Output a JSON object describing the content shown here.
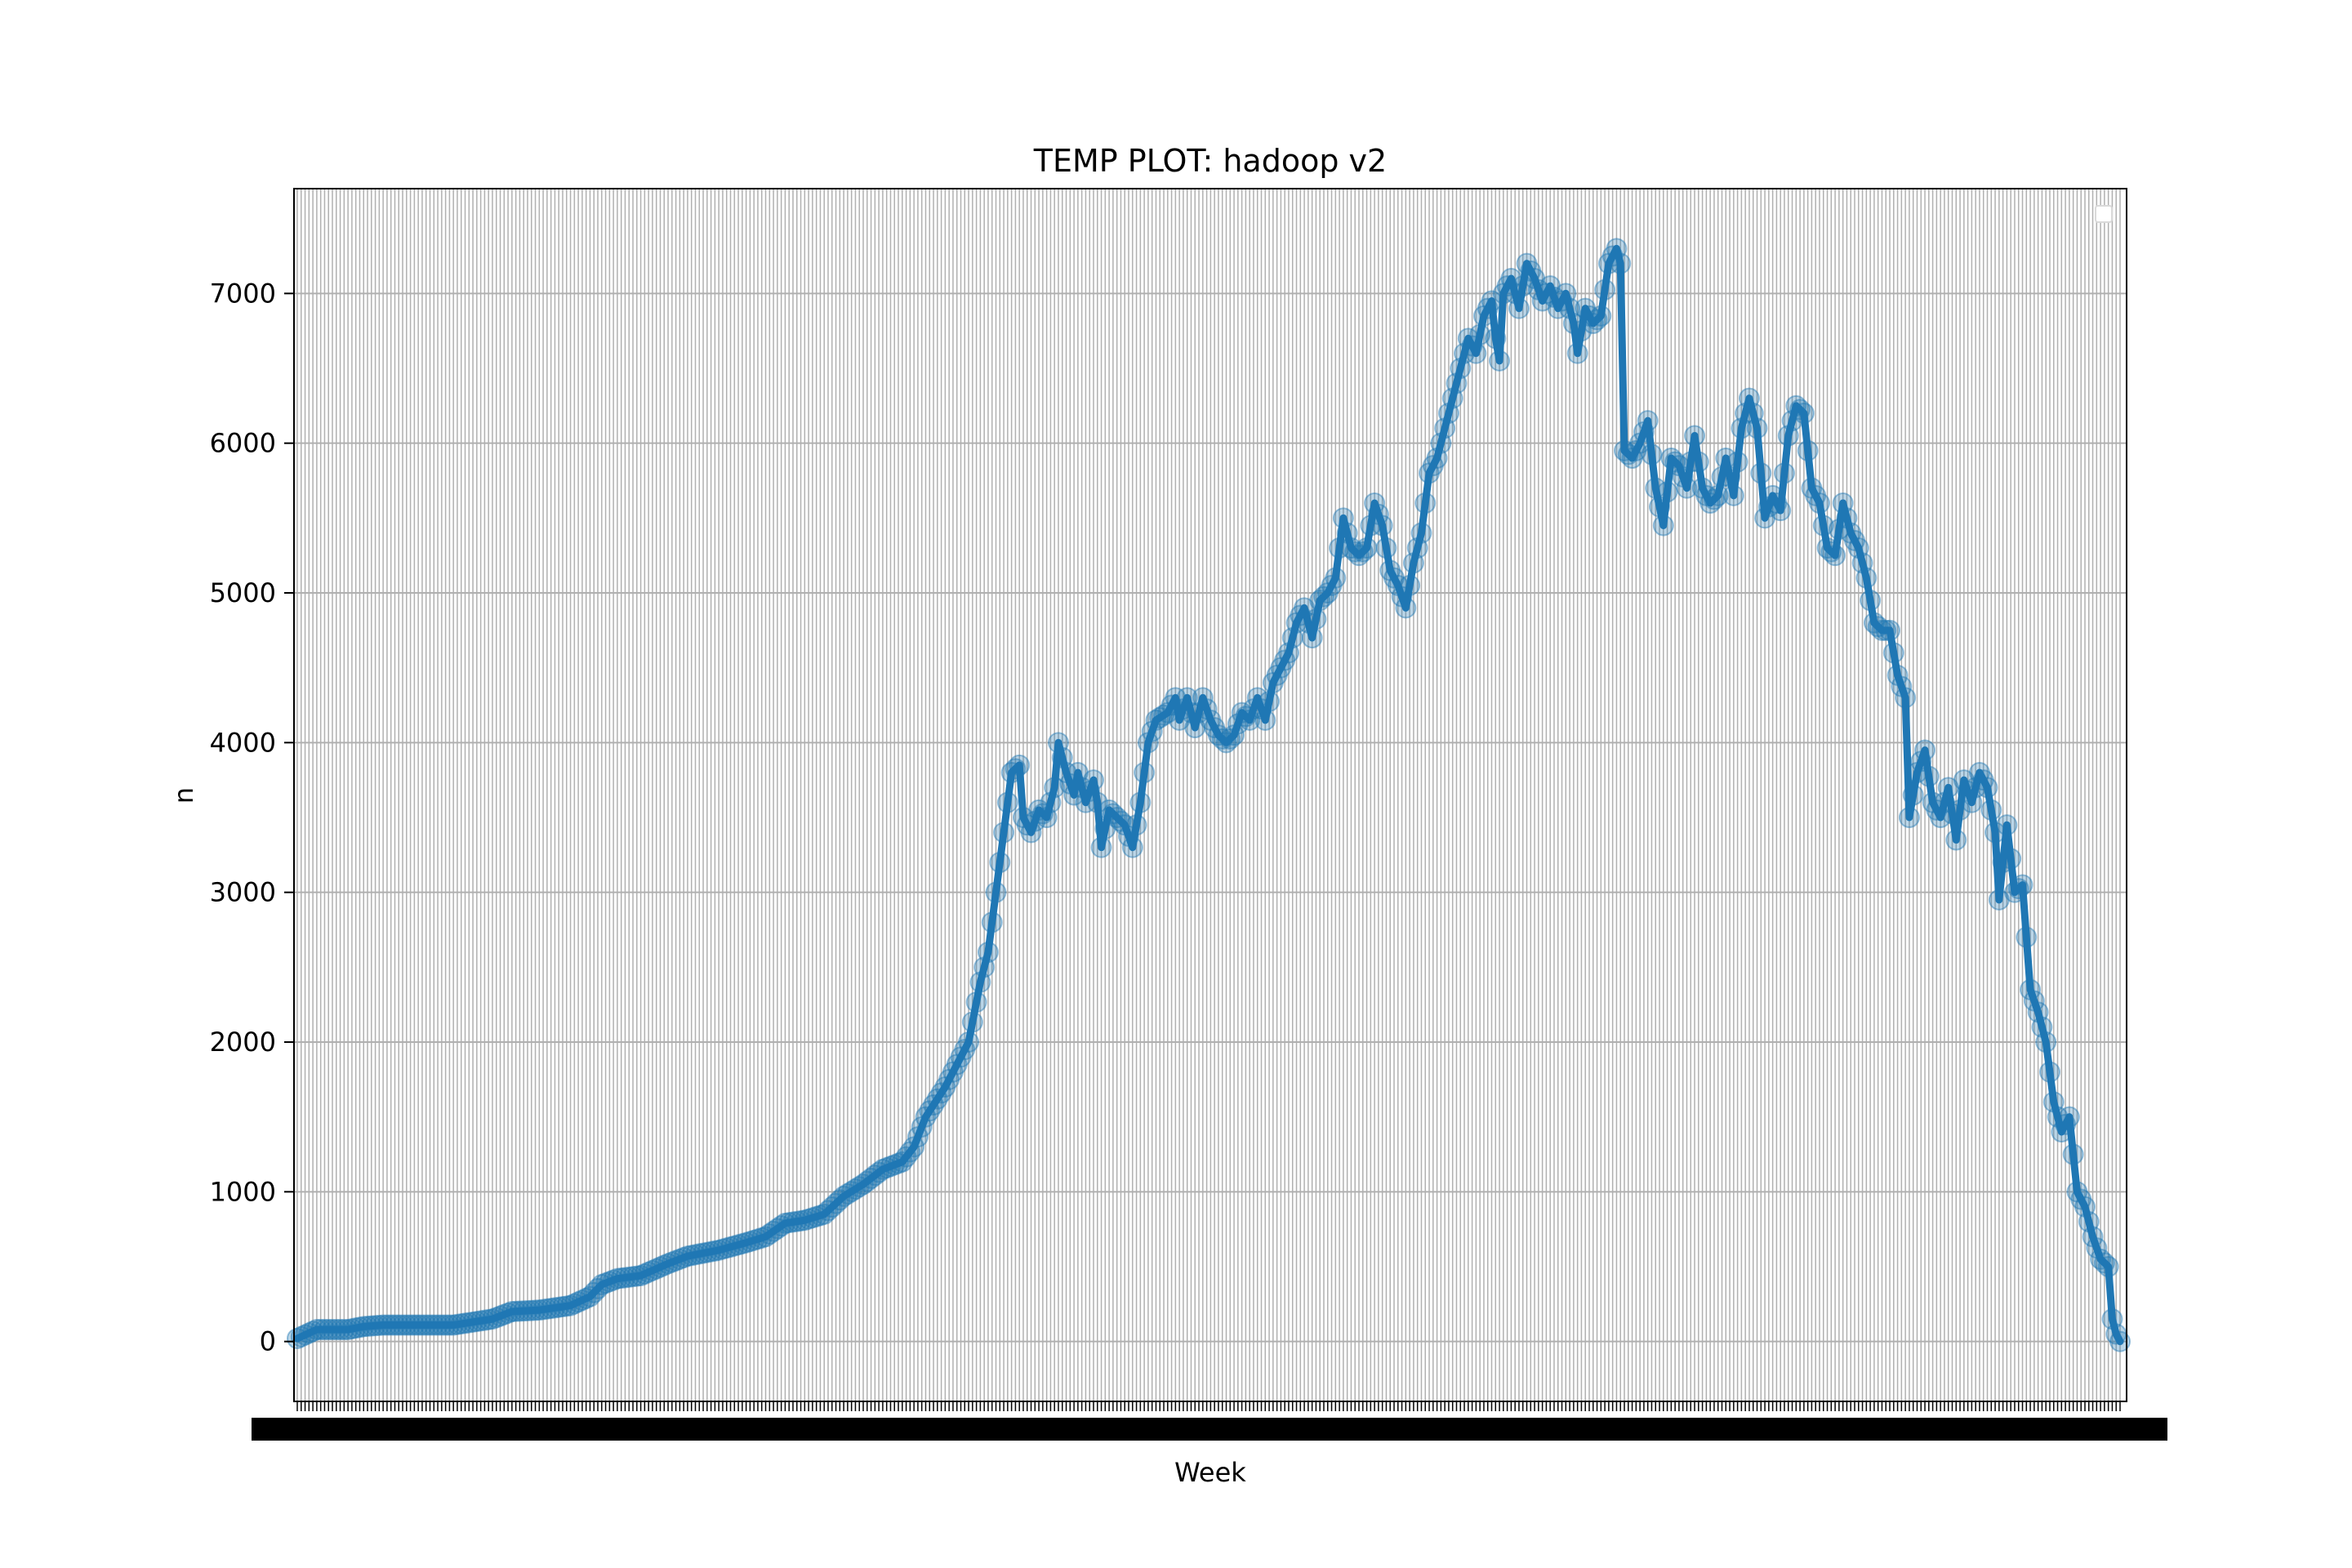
{
  "chart_data": {
    "type": "line",
    "title": "TEMP PLOT: hadoop v2",
    "xlabel": "Week",
    "ylabel": "n",
    "ylim": [
      -400,
      7700
    ],
    "yticks": [
      0,
      1000,
      2000,
      3000,
      4000,
      5000,
      6000,
      7000
    ],
    "grid": true,
    "legend": "top-right (empty)",
    "x_tick_labels_note": "dense overlapping week labels, illegible",
    "series": [
      {
        "name": "n",
        "color": "#1f77b4",
        "anchors": [
          [
            0,
            20
          ],
          [
            5,
            80
          ],
          [
            13,
            80
          ],
          [
            17,
            100
          ],
          [
            22,
            110
          ],
          [
            40,
            110
          ],
          [
            45,
            130
          ],
          [
            50,
            150
          ],
          [
            55,
            200
          ],
          [
            62,
            210
          ],
          [
            70,
            240
          ],
          [
            75,
            300
          ],
          [
            78,
            380
          ],
          [
            82,
            420
          ],
          [
            88,
            440
          ],
          [
            95,
            520
          ],
          [
            100,
            570
          ],
          [
            108,
            610
          ],
          [
            115,
            660
          ],
          [
            120,
            700
          ],
          [
            125,
            790
          ],
          [
            130,
            810
          ],
          [
            135,
            850
          ],
          [
            140,
            970
          ],
          [
            145,
            1050
          ],
          [
            150,
            1150
          ],
          [
            155,
            1200
          ],
          [
            158,
            1300
          ],
          [
            161,
            1500
          ],
          [
            166,
            1700
          ],
          [
            169,
            1850
          ],
          [
            172,
            2000
          ],
          [
            175,
            2400
          ],
          [
            177,
            2600
          ],
          [
            179,
            3000
          ],
          [
            181,
            3400
          ],
          [
            183,
            3800
          ],
          [
            185,
            3850
          ],
          [
            186,
            3500
          ],
          [
            188,
            3400
          ],
          [
            190,
            3550
          ],
          [
            192,
            3500
          ],
          [
            194,
            3700
          ],
          [
            195,
            4000
          ],
          [
            197,
            3800
          ],
          [
            199,
            3650
          ],
          [
            200,
            3800
          ],
          [
            202,
            3600
          ],
          [
            204,
            3750
          ],
          [
            205,
            3600
          ],
          [
            206,
            3300
          ],
          [
            208,
            3550
          ],
          [
            212,
            3450
          ],
          [
            214,
            3300
          ],
          [
            216,
            3600
          ],
          [
            218,
            4000
          ],
          [
            220,
            4150
          ],
          [
            223,
            4200
          ],
          [
            225,
            4300
          ],
          [
            226,
            4150
          ],
          [
            228,
            4300
          ],
          [
            230,
            4100
          ],
          [
            232,
            4300
          ],
          [
            234,
            4150
          ],
          [
            236,
            4050
          ],
          [
            238,
            4000
          ],
          [
            240,
            4050
          ],
          [
            242,
            4200
          ],
          [
            244,
            4150
          ],
          [
            246,
            4300
          ],
          [
            248,
            4150
          ],
          [
            250,
            4400
          ],
          [
            252,
            4500
          ],
          [
            254,
            4600
          ],
          [
            256,
            4800
          ],
          [
            258,
            4900
          ],
          [
            260,
            4700
          ],
          [
            262,
            4950
          ],
          [
            264,
            5000
          ],
          [
            266,
            5100
          ],
          [
            268,
            5500
          ],
          [
            270,
            5300
          ],
          [
            272,
            5250
          ],
          [
            274,
            5300
          ],
          [
            276,
            5600
          ],
          [
            278,
            5450
          ],
          [
            280,
            5150
          ],
          [
            282,
            5050
          ],
          [
            284,
            4900
          ],
          [
            286,
            5200
          ],
          [
            288,
            5400
          ],
          [
            290,
            5800
          ],
          [
            292,
            5900
          ],
          [
            294,
            6100
          ],
          [
            296,
            6300
          ],
          [
            298,
            6500
          ],
          [
            300,
            6700
          ],
          [
            302,
            6600
          ],
          [
            304,
            6850
          ],
          [
            306,
            6950
          ],
          [
            307,
            6700
          ],
          [
            308,
            6550
          ],
          [
            309,
            7000
          ],
          [
            311,
            7100
          ],
          [
            313,
            6900
          ],
          [
            315,
            7200
          ],
          [
            317,
            7100
          ],
          [
            319,
            6950
          ],
          [
            321,
            7050
          ],
          [
            323,
            6900
          ],
          [
            325,
            7000
          ],
          [
            327,
            6800
          ],
          [
            328,
            6600
          ],
          [
            330,
            6900
          ],
          [
            332,
            6800
          ],
          [
            334,
            6850
          ],
          [
            336,
            7200
          ],
          [
            338,
            7300
          ],
          [
            339,
            7200
          ],
          [
            340,
            5950
          ],
          [
            342,
            5900
          ],
          [
            344,
            6000
          ],
          [
            346,
            6150
          ],
          [
            348,
            5700
          ],
          [
            350,
            5450
          ],
          [
            352,
            5900
          ],
          [
            354,
            5850
          ],
          [
            356,
            5700
          ],
          [
            358,
            6050
          ],
          [
            360,
            5700
          ],
          [
            362,
            5600
          ],
          [
            364,
            5650
          ],
          [
            366,
            5900
          ],
          [
            368,
            5650
          ],
          [
            370,
            6100
          ],
          [
            372,
            6300
          ],
          [
            374,
            6100
          ],
          [
            376,
            5500
          ],
          [
            378,
            5650
          ],
          [
            380,
            5550
          ],
          [
            382,
            6050
          ],
          [
            384,
            6250
          ],
          [
            386,
            6200
          ],
          [
            388,
            5700
          ],
          [
            390,
            5600
          ],
          [
            392,
            5300
          ],
          [
            394,
            5250
          ],
          [
            396,
            5600
          ],
          [
            398,
            5400
          ],
          [
            400,
            5300
          ],
          [
            402,
            5100
          ],
          [
            404,
            4800
          ],
          [
            406,
            4750
          ],
          [
            408,
            4750
          ],
          [
            410,
            4450
          ],
          [
            412,
            4300
          ],
          [
            413,
            3500
          ],
          [
            415,
            3800
          ],
          [
            417,
            3950
          ],
          [
            419,
            3600
          ],
          [
            421,
            3500
          ],
          [
            423,
            3700
          ],
          [
            425,
            3350
          ],
          [
            427,
            3750
          ],
          [
            429,
            3600
          ],
          [
            431,
            3800
          ],
          [
            433,
            3700
          ],
          [
            435,
            3400
          ],
          [
            436,
            2950
          ],
          [
            438,
            3450
          ],
          [
            440,
            3000
          ],
          [
            442,
            3050
          ],
          [
            444,
            2350
          ],
          [
            446,
            2200
          ],
          [
            448,
            2000
          ],
          [
            450,
            1600
          ],
          [
            452,
            1400
          ],
          [
            454,
            1500
          ],
          [
            456,
            1000
          ],
          [
            458,
            900
          ],
          [
            460,
            700
          ],
          [
            462,
            550
          ],
          [
            464,
            500
          ],
          [
            465,
            150
          ],
          [
            466,
            50
          ],
          [
            467,
            0
          ]
        ]
      }
    ]
  }
}
